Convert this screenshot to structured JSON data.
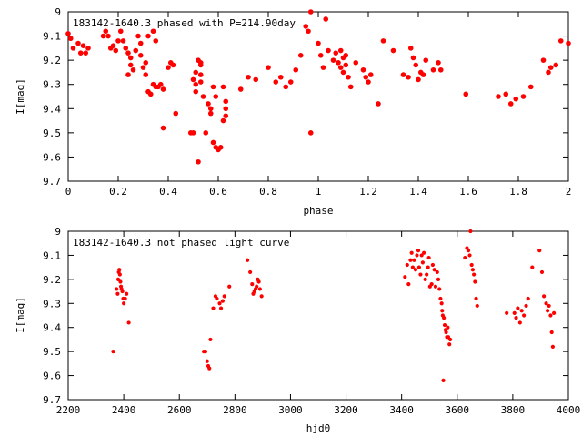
{
  "chart_data": [
    {
      "type": "scatter",
      "title": "183142-1640.3 phased with P=214.90day",
      "xlabel": "phase",
      "ylabel": "I[mag]",
      "xlim": [
        0,
        2
      ],
      "ylim": [
        9.7,
        9
      ],
      "y_inverted": true,
      "xticks": [
        "0",
        "0.2",
        "0.4",
        "0.6",
        "0.8",
        "1",
        "1.2",
        "1.4",
        "1.6",
        "1.8",
        "2"
      ],
      "yticks": [
        "9",
        "9.1",
        "9.2",
        "9.3",
        "9.4",
        "9.5",
        "9.6",
        "9.7"
      ],
      "grid": false,
      "marker_color": "#ff0000",
      "series": [
        {
          "points": [
            [
              0.0,
              9.09
            ],
            [
              0.01,
              9.11
            ],
            [
              0.02,
              9.15
            ],
            [
              0.04,
              9.13
            ],
            [
              0.05,
              9.17
            ],
            [
              0.06,
              9.14
            ],
            [
              0.07,
              9.17
            ],
            [
              0.08,
              9.15
            ],
            [
              0.14,
              9.1
            ],
            [
              0.15,
              9.08
            ],
            [
              0.16,
              9.1
            ],
            [
              0.17,
              9.15
            ],
            [
              0.18,
              9.14
            ],
            [
              0.19,
              9.16
            ],
            [
              0.2,
              9.12
            ],
            [
              0.21,
              9.08
            ],
            [
              0.22,
              9.12
            ],
            [
              0.23,
              9.15
            ],
            [
              0.24,
              9.17
            ],
            [
              0.24,
              9.26
            ],
            [
              0.25,
              9.22
            ],
            [
              0.25,
              9.19
            ],
            [
              0.26,
              9.24
            ],
            [
              0.27,
              9.16
            ],
            [
              0.28,
              9.1
            ],
            [
              0.29,
              9.18
            ],
            [
              0.29,
              9.13
            ],
            [
              0.3,
              9.23
            ],
            [
              0.31,
              9.26
            ],
            [
              0.31,
              9.21
            ],
            [
              0.32,
              9.33
            ],
            [
              0.33,
              9.34
            ],
            [
              0.34,
              9.3
            ],
            [
              0.35,
              9.31
            ],
            [
              0.36,
              9.31
            ],
            [
              0.37,
              9.3
            ],
            [
              0.38,
              9.32
            ],
            [
              0.4,
              9.23
            ],
            [
              0.41,
              9.21
            ],
            [
              0.42,
              9.22
            ],
            [
              0.43,
              9.42
            ],
            [
              0.38,
              9.48
            ],
            [
              0.34,
              9.08
            ],
            [
              0.35,
              9.12
            ],
            [
              0.32,
              9.1
            ],
            [
              0.49,
              9.5
            ],
            [
              0.5,
              9.5
            ],
            [
              0.5,
              9.28
            ],
            [
              0.51,
              9.25
            ],
            [
              0.51,
              9.3
            ],
            [
              0.51,
              9.33
            ],
            [
              0.52,
              9.2
            ],
            [
              0.52,
              9.62
            ],
            [
              0.53,
              9.22
            ],
            [
              0.53,
              9.26
            ],
            [
              0.53,
              9.29
            ],
            [
              0.53,
              9.21
            ],
            [
              0.54,
              9.35
            ],
            [
              0.55,
              9.5
            ],
            [
              0.56,
              9.38
            ],
            [
              0.57,
              9.4
            ],
            [
              0.57,
              9.42
            ],
            [
              0.58,
              9.54
            ],
            [
              0.59,
              9.56
            ],
            [
              0.6,
              9.57
            ],
            [
              0.61,
              9.56
            ],
            [
              0.62,
              9.31
            ],
            [
              0.62,
              9.45
            ],
            [
              0.63,
              9.4
            ],
            [
              0.63,
              9.37
            ],
            [
              0.63,
              9.43
            ],
            [
              0.58,
              9.31
            ],
            [
              0.59,
              9.35
            ],
            [
              0.69,
              9.32
            ],
            [
              0.72,
              9.27
            ],
            [
              0.75,
              9.28
            ],
            [
              0.8,
              9.23
            ],
            [
              0.83,
              9.29
            ],
            [
              0.85,
              9.27
            ],
            [
              0.87,
              9.31
            ],
            [
              0.89,
              9.29
            ],
            [
              0.91,
              9.24
            ],
            [
              0.93,
              9.18
            ],
            [
              0.95,
              9.06
            ],
            [
              0.96,
              9.08
            ],
            [
              0.97,
              9.0
            ],
            [
              0.97,
              9.5
            ],
            [
              1.0,
              9.13
            ],
            [
              1.01,
              9.18
            ],
            [
              1.02,
              9.23
            ],
            [
              1.03,
              9.03
            ],
            [
              1.04,
              9.16
            ],
            [
              1.06,
              9.2
            ],
            [
              1.07,
              9.17
            ],
            [
              1.08,
              9.21
            ],
            [
              1.09,
              9.23
            ],
            [
              1.09,
              9.16
            ],
            [
              1.1,
              9.19
            ],
            [
              1.1,
              9.25
            ],
            [
              1.11,
              9.22
            ],
            [
              1.11,
              9.18
            ],
            [
              1.12,
              9.27
            ],
            [
              1.13,
              9.31
            ],
            [
              1.15,
              9.21
            ],
            [
              1.18,
              9.24
            ],
            [
              1.19,
              9.27
            ],
            [
              1.2,
              9.29
            ],
            [
              1.21,
              9.26
            ],
            [
              1.24,
              9.38
            ],
            [
              1.26,
              9.12
            ],
            [
              1.3,
              9.16
            ],
            [
              1.34,
              9.26
            ],
            [
              1.36,
              9.27
            ],
            [
              1.37,
              9.15
            ],
            [
              1.38,
              9.19
            ],
            [
              1.39,
              9.22
            ],
            [
              1.4,
              9.28
            ],
            [
              1.41,
              9.25
            ],
            [
              1.42,
              9.26
            ],
            [
              1.43,
              9.2
            ],
            [
              1.46,
              9.24
            ],
            [
              1.48,
              9.21
            ],
            [
              1.49,
              9.24
            ],
            [
              1.59,
              9.34
            ],
            [
              1.72,
              9.35
            ],
            [
              1.75,
              9.34
            ],
            [
              1.77,
              9.38
            ],
            [
              1.79,
              9.36
            ],
            [
              1.82,
              9.35
            ],
            [
              1.85,
              9.31
            ],
            [
              1.9,
              9.2
            ],
            [
              1.92,
              9.25
            ],
            [
              1.93,
              9.23
            ],
            [
              1.95,
              9.22
            ],
            [
              1.97,
              9.12
            ],
            [
              2.0,
              9.13
            ]
          ]
        }
      ]
    },
    {
      "type": "scatter",
      "title": "183142-1640.3 not phased light curve",
      "xlabel": "hjd0",
      "ylabel": "I[mag]",
      "xlim": [
        2200,
        4000
      ],
      "ylim": [
        9.7,
        9
      ],
      "y_inverted": true,
      "xticks": [
        "2200",
        "2400",
        "2600",
        "2800",
        "3000",
        "3200",
        "3400",
        "3600",
        "3800",
        "4000"
      ],
      "yticks": [
        "9",
        "9.1",
        "9.2",
        "9.3",
        "9.4",
        "9.5",
        "9.6",
        "9.7"
      ],
      "grid": false,
      "marker_color": "#ff0000",
      "series": [
        {
          "points": [
            [
              2362,
              9.5
            ],
            [
              2374,
              9.24
            ],
            [
              2378,
              9.26
            ],
            [
              2380,
              9.2
            ],
            [
              2382,
              9.17
            ],
            [
              2384,
              9.16
            ],
            [
              2386,
              9.18
            ],
            [
              2388,
              9.21
            ],
            [
              2390,
              9.23
            ],
            [
              2392,
              9.24
            ],
            [
              2395,
              9.25
            ],
            [
              2398,
              9.28
            ],
            [
              2400,
              9.3
            ],
            [
              2405,
              9.28
            ],
            [
              2410,
              9.26
            ],
            [
              2418,
              9.38
            ],
            [
              2688,
              9.5
            ],
            [
              2694,
              9.5
            ],
            [
              2700,
              9.54
            ],
            [
              2704,
              9.56
            ],
            [
              2708,
              9.57
            ],
            [
              2712,
              9.45
            ],
            [
              2722,
              9.32
            ],
            [
              2730,
              9.27
            ],
            [
              2735,
              9.28
            ],
            [
              2745,
              9.3
            ],
            [
              2750,
              9.32
            ],
            [
              2756,
              9.29
            ],
            [
              2762,
              9.27
            ],
            [
              2780,
              9.23
            ],
            [
              2845,
              9.12
            ],
            [
              2855,
              9.17
            ],
            [
              2862,
              9.22
            ],
            [
              2866,
              9.26
            ],
            [
              2870,
              9.25
            ],
            [
              2874,
              9.24
            ],
            [
              2878,
              9.23
            ],
            [
              2882,
              9.2
            ],
            [
              2886,
              9.21
            ],
            [
              2890,
              9.24
            ],
            [
              2896,
              9.27
            ],
            [
              3412,
              9.19
            ],
            [
              3420,
              9.14
            ],
            [
              3425,
              9.22
            ],
            [
              3432,
              9.12
            ],
            [
              3436,
              9.09
            ],
            [
              3440,
              9.15
            ],
            [
              3445,
              9.12
            ],
            [
              3450,
              9.16
            ],
            [
              3455,
              9.1
            ],
            [
              3460,
              9.08
            ],
            [
              3463,
              9.15
            ],
            [
              3468,
              9.18
            ],
            [
              3472,
              9.1
            ],
            [
              3476,
              9.13
            ],
            [
              3480,
              9.09
            ],
            [
              3485,
              9.2
            ],
            [
              3490,
              9.18
            ],
            [
              3495,
              9.15
            ],
            [
              3498,
              9.11
            ],
            [
              3502,
              9.23
            ],
            [
              3508,
              9.22
            ],
            [
              3512,
              9.14
            ],
            [
              3518,
              9.16
            ],
            [
              3522,
              9.23
            ],
            [
              3528,
              9.17
            ],
            [
              3532,
              9.2
            ],
            [
              3536,
              9.24
            ],
            [
              3540,
              9.28
            ],
            [
              3544,
              9.3
            ],
            [
              3546,
              9.33
            ],
            [
              3548,
              9.35
            ],
            [
              3550,
              9.62
            ],
            [
              3552,
              9.36
            ],
            [
              3555,
              9.39
            ],
            [
              3558,
              9.41
            ],
            [
              3560,
              9.42
            ],
            [
              3563,
              9.44
            ],
            [
              3566,
              9.4
            ],
            [
              3568,
              9.44
            ],
            [
              3572,
              9.47
            ],
            [
              3575,
              9.45
            ],
            [
              3628,
              9.11
            ],
            [
              3635,
              9.07
            ],
            [
              3640,
              9.08
            ],
            [
              3645,
              9.1
            ],
            [
              3648,
              9.0
            ],
            [
              3652,
              9.14
            ],
            [
              3656,
              9.16
            ],
            [
              3660,
              9.18
            ],
            [
              3664,
              9.21
            ],
            [
              3668,
              9.28
            ],
            [
              3672,
              9.31
            ],
            [
              3778,
              9.34
            ],
            [
              3806,
              9.34
            ],
            [
              3812,
              9.36
            ],
            [
              3818,
              9.32
            ],
            [
              3826,
              9.38
            ],
            [
              3832,
              9.33
            ],
            [
              3840,
              9.35
            ],
            [
              3848,
              9.31
            ],
            [
              3855,
              9.28
            ],
            [
              3870,
              9.15
            ],
            [
              3896,
              9.08
            ],
            [
              3905,
              9.17
            ],
            [
              3912,
              9.27
            ],
            [
              3920,
              9.3
            ],
            [
              3925,
              9.33
            ],
            [
              3930,
              9.31
            ],
            [
              3936,
              9.35
            ],
            [
              3940,
              9.42
            ],
            [
              3944,
              9.48
            ],
            [
              3948,
              9.34
            ]
          ]
        }
      ]
    }
  ]
}
